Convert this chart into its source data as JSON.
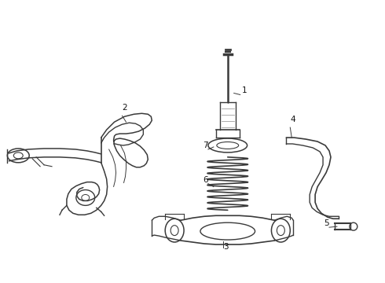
{
  "background_color": "#ffffff",
  "line_color": "#3a3a3a",
  "label_color": "#111111",
  "figsize": [
    4.9,
    3.6
  ],
  "dpi": 100,
  "lw": 1.0
}
